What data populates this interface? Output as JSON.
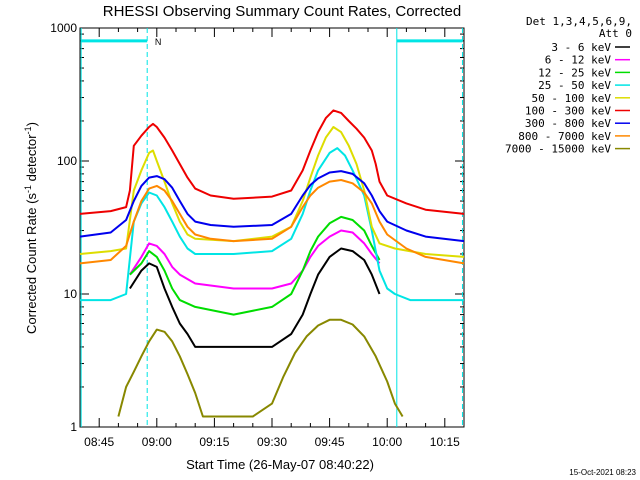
{
  "chart_data": {
    "type": "line",
    "title": "RHESSI Observing Summary Count Rates, Corrected",
    "xlabel": "Start Time (26-May-07 08:40:22)",
    "ylabel_main": "Corrected Count Rate (s",
    "ylabel_sup1": "-1",
    "ylabel_mid": " detector",
    "ylabel_sup2": "-1",
    "ylabel_end": ")",
    "yscale": "log",
    "ylim": [
      1,
      1000
    ],
    "y_tick_labels": [
      "1",
      "10",
      "100",
      "1000"
    ],
    "y_ticks": [
      1,
      10,
      100,
      1000
    ],
    "xlim_minutes": [
      0,
      100
    ],
    "x_tick_labels": [
      "08:45",
      "09:00",
      "09:15",
      "09:30",
      "09:45",
      "10:00",
      "10:15"
    ],
    "x_ticks_minutes": [
      5,
      20,
      35,
      50,
      65,
      80,
      95
    ],
    "legend_header": [
      "Det 1,3,4,5,6,9,",
      "Att 0"
    ],
    "legend_position": "right",
    "grid": false,
    "series": [
      {
        "name": "3 - 6 keV",
        "color": "#000000",
        "points": [
          [
            13,
            11
          ],
          [
            16,
            15
          ],
          [
            18,
            17
          ],
          [
            20,
            16
          ],
          [
            22,
            11
          ],
          [
            24,
            8
          ],
          [
            26,
            6
          ],
          [
            28,
            5
          ],
          [
            30,
            4
          ],
          [
            40,
            4
          ],
          [
            50,
            4
          ],
          [
            55,
            5
          ],
          [
            58,
            7
          ],
          [
            60,
            10
          ],
          [
            62,
            14
          ],
          [
            65,
            19
          ],
          [
            68,
            22
          ],
          [
            71,
            21
          ],
          [
            74,
            18
          ],
          [
            76,
            14
          ],
          [
            78,
            10
          ]
        ]
      },
      {
        "name": "6 - 12 keV",
        "color": "#ff00ff",
        "points": [
          [
            13,
            14
          ],
          [
            16,
            19
          ],
          [
            18,
            24
          ],
          [
            20,
            23
          ],
          [
            22,
            20
          ],
          [
            24,
            16
          ],
          [
            26,
            14
          ],
          [
            30,
            12
          ],
          [
            40,
            11
          ],
          [
            50,
            11
          ],
          [
            55,
            12
          ],
          [
            58,
            15
          ],
          [
            60,
            19
          ],
          [
            62,
            23
          ],
          [
            65,
            27
          ],
          [
            68,
            30
          ],
          [
            71,
            29
          ],
          [
            74,
            24
          ],
          [
            76,
            20
          ],
          [
            78,
            17
          ]
        ]
      },
      {
        "name": "12 - 25 keV",
        "color": "#00dd00",
        "points": [
          [
            13,
            14
          ],
          [
            16,
            17
          ],
          [
            18,
            21
          ],
          [
            20,
            19
          ],
          [
            22,
            15
          ],
          [
            24,
            11
          ],
          [
            26,
            9
          ],
          [
            30,
            8
          ],
          [
            40,
            7
          ],
          [
            50,
            8
          ],
          [
            55,
            10
          ],
          [
            58,
            15
          ],
          [
            60,
            21
          ],
          [
            62,
            27
          ],
          [
            65,
            34
          ],
          [
            68,
            38
          ],
          [
            71,
            36
          ],
          [
            74,
            30
          ],
          [
            76,
            23
          ],
          [
            78,
            18
          ]
        ]
      },
      {
        "name": "25 - 50 keV",
        "color": "#00e5e5",
        "points": [
          [
            0,
            9
          ],
          [
            8,
            9
          ],
          [
            12,
            10
          ],
          [
            14,
            35
          ],
          [
            16,
            48
          ],
          [
            18,
            58
          ],
          [
            20,
            55
          ],
          [
            22,
            45
          ],
          [
            24,
            35
          ],
          [
            26,
            27
          ],
          [
            28,
            22
          ],
          [
            30,
            20
          ],
          [
            40,
            20
          ],
          [
            50,
            21
          ],
          [
            55,
            26
          ],
          [
            58,
            40
          ],
          [
            60,
            60
          ],
          [
            62,
            85
          ],
          [
            65,
            115
          ],
          [
            67,
            125
          ],
          [
            69,
            110
          ],
          [
            71,
            85
          ],
          [
            74,
            55
          ],
          [
            76,
            30
          ],
          [
            78,
            15
          ],
          [
            80,
            11
          ],
          [
            82,
            10
          ],
          [
            86,
            9
          ],
          [
            100,
            9
          ]
        ]
      },
      {
        "name": "50 - 100 keV",
        "color": "#dddd00",
        "points": [
          [
            0,
            20
          ],
          [
            8,
            21
          ],
          [
            12,
            22
          ],
          [
            14,
            60
          ],
          [
            16,
            85
          ],
          [
            18,
            115
          ],
          [
            19,
            120
          ],
          [
            20,
            100
          ],
          [
            22,
            70
          ],
          [
            24,
            48
          ],
          [
            26,
            35
          ],
          [
            28,
            28
          ],
          [
            30,
            26
          ],
          [
            40,
            25
          ],
          [
            50,
            27
          ],
          [
            55,
            32
          ],
          [
            58,
            50
          ],
          [
            60,
            75
          ],
          [
            62,
            110
          ],
          [
            64,
            150
          ],
          [
            66,
            180
          ],
          [
            68,
            165
          ],
          [
            70,
            130
          ],
          [
            72,
            95
          ],
          [
            74,
            60
          ],
          [
            76,
            32
          ],
          [
            78,
            24
          ],
          [
            82,
            22
          ],
          [
            90,
            20
          ],
          [
            100,
            19
          ]
        ]
      },
      {
        "name": "100 - 300 keV",
        "color": "#ee0000",
        "points": [
          [
            0,
            40
          ],
          [
            8,
            42
          ],
          [
            12,
            45
          ],
          [
            13,
            60
          ],
          [
            14,
            130
          ],
          [
            16,
            155
          ],
          [
            18,
            180
          ],
          [
            19,
            190
          ],
          [
            20,
            180
          ],
          [
            22,
            150
          ],
          [
            24,
            120
          ],
          [
            26,
            95
          ],
          [
            28,
            75
          ],
          [
            30,
            62
          ],
          [
            34,
            55
          ],
          [
            40,
            52
          ],
          [
            50,
            54
          ],
          [
            55,
            60
          ],
          [
            58,
            85
          ],
          [
            60,
            120
          ],
          [
            62,
            165
          ],
          [
            64,
            210
          ],
          [
            66,
            240
          ],
          [
            68,
            230
          ],
          [
            70,
            200
          ],
          [
            72,
            175
          ],
          [
            74,
            150
          ],
          [
            76,
            120
          ],
          [
            77,
            95
          ],
          [
            78,
            70
          ],
          [
            80,
            55
          ],
          [
            85,
            48
          ],
          [
            90,
            43
          ],
          [
            100,
            40
          ]
        ]
      },
      {
        "name": "300 - 800 keV",
        "color": "#0000ee",
        "points": [
          [
            0,
            27
          ],
          [
            8,
            29
          ],
          [
            12,
            36
          ],
          [
            14,
            50
          ],
          [
            16,
            65
          ],
          [
            18,
            75
          ],
          [
            20,
            77
          ],
          [
            22,
            73
          ],
          [
            24,
            63
          ],
          [
            26,
            50
          ],
          [
            28,
            40
          ],
          [
            30,
            35
          ],
          [
            34,
            33
          ],
          [
            40,
            32
          ],
          [
            50,
            33
          ],
          [
            55,
            40
          ],
          [
            58,
            55
          ],
          [
            60,
            66
          ],
          [
            62,
            74
          ],
          [
            65,
            82
          ],
          [
            68,
            84
          ],
          [
            71,
            80
          ],
          [
            74,
            68
          ],
          [
            76,
            55
          ],
          [
            78,
            42
          ],
          [
            80,
            35
          ],
          [
            85,
            30
          ],
          [
            90,
            27
          ],
          [
            100,
            25
          ]
        ]
      },
      {
        "name": "800 - 7000 keV",
        "color": "#ff8800",
        "points": [
          [
            0,
            17
          ],
          [
            8,
            18
          ],
          [
            12,
            23
          ],
          [
            14,
            35
          ],
          [
            16,
            50
          ],
          [
            18,
            62
          ],
          [
            20,
            65
          ],
          [
            22,
            60
          ],
          [
            24,
            50
          ],
          [
            26,
            40
          ],
          [
            28,
            32
          ],
          [
            30,
            28
          ],
          [
            34,
            26
          ],
          [
            40,
            25
          ],
          [
            50,
            26
          ],
          [
            55,
            32
          ],
          [
            58,
            45
          ],
          [
            60,
            55
          ],
          [
            62,
            63
          ],
          [
            65,
            70
          ],
          [
            68,
            72
          ],
          [
            71,
            68
          ],
          [
            74,
            58
          ],
          [
            76,
            48
          ],
          [
            78,
            35
          ],
          [
            80,
            28
          ],
          [
            85,
            22
          ],
          [
            90,
            19
          ],
          [
            100,
            17
          ]
        ]
      },
      {
        "name": "7000 - 15000 keV",
        "color": "#888800",
        "points": [
          [
            10,
            1.2
          ],
          [
            12,
            2
          ],
          [
            14,
            2.6
          ],
          [
            16,
            3.4
          ],
          [
            18,
            4.4
          ],
          [
            20,
            5.4
          ],
          [
            22,
            5.2
          ],
          [
            24,
            4.4
          ],
          [
            26,
            3.4
          ],
          [
            28,
            2.5
          ],
          [
            30,
            1.8
          ],
          [
            32,
            1.2
          ],
          [
            45,
            1.2
          ],
          [
            50,
            1.5
          ],
          [
            53,
            2.4
          ],
          [
            56,
            3.6
          ],
          [
            59,
            4.8
          ],
          [
            62,
            5.8
          ],
          [
            65,
            6.4
          ],
          [
            68,
            6.4
          ],
          [
            71,
            5.9
          ],
          [
            74,
            4.8
          ],
          [
            77,
            3.4
          ],
          [
            80,
            2.2
          ],
          [
            82,
            1.5
          ],
          [
            84,
            1.2
          ]
        ]
      }
    ],
    "attenuator_marker_label": "N",
    "timestamp": "15-Oct-2021 08:23"
  }
}
